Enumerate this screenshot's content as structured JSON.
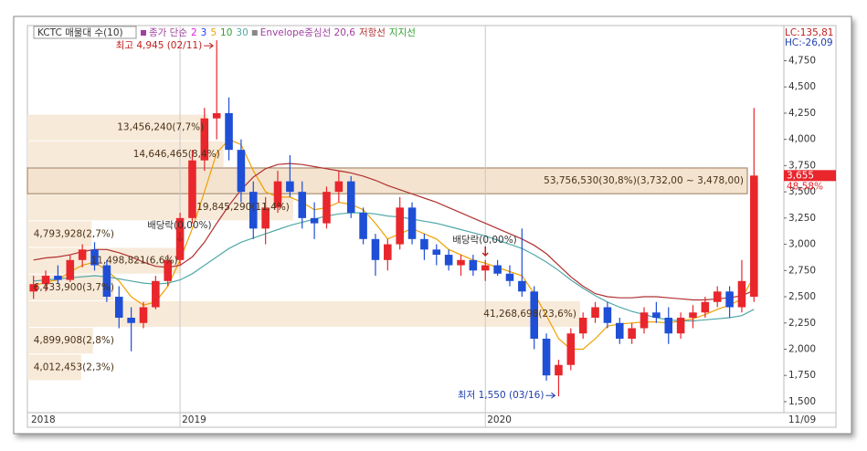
{
  "chart_data": {
    "type": "candlestick",
    "title": "KCTC 매물대 수(10)",
    "legend_prefix": "종가 단순",
    "categories": [
      "2018",
      null,
      null,
      null,
      null,
      null,
      null,
      null,
      null,
      null,
      null,
      null,
      "2019",
      null,
      null,
      null,
      null,
      null,
      null,
      null,
      null,
      null,
      null,
      null,
      null,
      null,
      null,
      null,
      null,
      null,
      null,
      null,
      null,
      null,
      null,
      null,
      null,
      "2020",
      null,
      null,
      null,
      null,
      null,
      null,
      null,
      null,
      null,
      null,
      null,
      null,
      null,
      null,
      null,
      null,
      null,
      null,
      null,
      null,
      null,
      null
    ],
    "open": [
      2550,
      2620,
      2700,
      2660,
      2850,
      2950,
      2800,
      2500,
      2300,
      2250,
      2400,
      2650,
      2850,
      3250,
      3800,
      4200,
      4250,
      3900,
      3500,
      3150,
      3350,
      3600,
      3500,
      3250,
      3200,
      3500,
      3600,
      3300,
      3050,
      2850,
      3000,
      3350,
      3050,
      2950,
      2900,
      2800,
      2850,
      2750,
      2800,
      2720,
      2650,
      2550,
      2100,
      1750,
      1850,
      2150,
      2300,
      2400,
      2250,
      2100,
      2200,
      2350,
      2300,
      2150,
      2300,
      2350,
      2450,
      2550,
      2400,
      2500
    ],
    "high": [
      2700,
      2750,
      2800,
      2900,
      3000,
      3020,
      2850,
      2600,
      2400,
      2450,
      2700,
      2900,
      3300,
      3900,
      4300,
      4945,
      4400,
      4000,
      3600,
      3450,
      3700,
      3850,
      3600,
      3400,
      3550,
      3700,
      3650,
      3350,
      3100,
      3050,
      3450,
      3400,
      3100,
      3000,
      2950,
      2900,
      2900,
      2850,
      2850,
      2800,
      3150,
      2600,
      2150,
      1900,
      2200,
      2350,
      2450,
      2450,
      2300,
      2250,
      2400,
      2450,
      2400,
      2350,
      2420,
      2500,
      2600,
      2600,
      2850,
      4300
    ],
    "low": [
      2480,
      2550,
      2620,
      2640,
      2780,
      2750,
      2450,
      2200,
      1980,
      2200,
      2380,
      2600,
      2800,
      3200,
      3700,
      4000,
      3800,
      3400,
      3050,
      3000,
      3300,
      3450,
      3150,
      3050,
      3150,
      3400,
      3250,
      3000,
      2700,
      2750,
      2950,
      3000,
      2850,
      2800,
      2750,
      2700,
      2700,
      2650,
      2700,
      2600,
      2500,
      2000,
      1700,
      1550,
      1800,
      2100,
      2250,
      2200,
      2050,
      2050,
      2150,
      2250,
      2050,
      2100,
      2200,
      2300,
      2400,
      2300,
      2350,
      2450
    ],
    "close": [
      2620,
      2700,
      2660,
      2850,
      2950,
      2800,
      2500,
      2300,
      2250,
      2400,
      2650,
      2850,
      3250,
      3800,
      4200,
      4250,
      3900,
      3500,
      3150,
      3350,
      3600,
      3500,
      3250,
      3200,
      3500,
      3600,
      3300,
      3050,
      2850,
      3000,
      3350,
      3050,
      2950,
      2900,
      2800,
      2850,
      2750,
      2800,
      2720,
      2650,
      2550,
      2100,
      1750,
      1850,
      2150,
      2300,
      2400,
      2250,
      2100,
      2200,
      2350,
      2300,
      2150,
      2300,
      2350,
      2450,
      2550,
      2400,
      2650,
      3655
    ],
    "up_color": "#e8262c",
    "down_color": "#1f4fd6",
    "series": [
      {
        "name": "2",
        "color": "#e020e0"
      },
      {
        "name": "3",
        "color": "#2040ff"
      },
      {
        "name": "5",
        "color": "#f0a000",
        "values": [
          2600,
          2640,
          2660,
          2740,
          2800,
          2830,
          2750,
          2650,
          2500,
          2420,
          2450,
          2600,
          2850,
          3150,
          3500,
          3870,
          4000,
          3950,
          3700,
          3500,
          3450,
          3450,
          3400,
          3330,
          3350,
          3400,
          3380,
          3330,
          3200,
          3050,
          3100,
          3150,
          3100,
          3050,
          2950,
          2900,
          2850,
          2820,
          2780,
          2740,
          2700,
          2530,
          2320,
          2100,
          2000,
          2000,
          2100,
          2220,
          2240,
          2250,
          2260,
          2260,
          2250,
          2270,
          2290,
          2330,
          2380,
          2420,
          2480,
          2700
        ]
      },
      {
        "name": "10",
        "color": "#30a030"
      },
      {
        "name": "30",
        "color": "#50a8a8",
        "values": [
          2650,
          2660,
          2670,
          2680,
          2690,
          2700,
          2690,
          2670,
          2650,
          2630,
          2620,
          2630,
          2660,
          2720,
          2800,
          2880,
          2960,
          3020,
          3060,
          3100,
          3140,
          3180,
          3210,
          3240,
          3270,
          3290,
          3300,
          3300,
          3290,
          3270,
          3260,
          3240,
          3220,
          3200,
          3170,
          3140,
          3110,
          3080,
          3040,
          3000,
          2960,
          2900,
          2830,
          2750,
          2660,
          2580,
          2510,
          2450,
          2400,
          2360,
          2330,
          2300,
          2280,
          2270,
          2270,
          2280,
          2290,
          2300,
          2320,
          2380
        ]
      },
      {
        "name": "Envelope중심선 20,6",
        "color": "#a040a0"
      },
      {
        "name": "저항선",
        "color": "#b03030",
        "values": [
          2850,
          2870,
          2880,
          2900,
          2930,
          2950,
          2950,
          2920,
          2880,
          2830,
          2790,
          2780,
          2800,
          2880,
          3020,
          3200,
          3370,
          3520,
          3640,
          3720,
          3760,
          3770,
          3760,
          3740,
          3720,
          3700,
          3680,
          3650,
          3610,
          3560,
          3520,
          3480,
          3440,
          3400,
          3350,
          3300,
          3250,
          3200,
          3150,
          3100,
          3050,
          2990,
          2910,
          2800,
          2690,
          2600,
          2530,
          2500,
          2490,
          2490,
          2500,
          2500,
          2490,
          2480,
          2470,
          2470,
          2480,
          2490,
          2510,
          2560
        ]
      },
      {
        "name": "지지선",
        "color": "#30a030"
      }
    ],
    "volume_profile": [
      {
        "label": "13,456,240(7,7%)",
        "volume": 13456240,
        "low": 3986,
        "high": 4240
      },
      {
        "label": "14,646,465(8,4%)",
        "volume": 14646465,
        "low": 3732,
        "high": 3986
      },
      {
        "label": "53,756,530(30,8%)(3,732,00 ~ 3,478,00)",
        "volume": 53756530,
        "low": 3478,
        "high": 3732
      },
      {
        "label": "19,845,290(11,4%)",
        "volume": 19845290,
        "low": 3224,
        "high": 3478
      },
      {
        "label": "4,793,928(2,7%)",
        "volume": 4793928,
        "low": 2970,
        "high": 3224
      },
      {
        "label": "11,498,821(6,6%)",
        "volume": 11498821,
        "low": 2716,
        "high": 2970
      },
      {
        "label": "6,433,900(3,7%)",
        "volume": 6433900,
        "low": 2462,
        "high": 2716
      },
      {
        "label": "41,268,698(23,6%)",
        "volume": 41268698,
        "low": 2208,
        "high": 2462
      },
      {
        "label": "4,899,908(2,8%)",
        "volume": 4899908,
        "low": 1954,
        "high": 2208
      },
      {
        "label": "4,012,453(2,3%)",
        "volume": 4012453,
        "low": 1700,
        "high": 1954
      }
    ],
    "vlim": [
      0,
      53756530
    ],
    "high_note": "최고 4,945 (02/11)",
    "low_note": "최저 1,550 (03/16)",
    "dividend_notes": [
      "배당락(0,00%)",
      "배당락(0,00%)"
    ],
    "last_price_label": "3,655",
    "last_change": "48,58%",
    "lc": "LC:135,81",
    "hc": "HC:-26,09",
    "last_date": "11/09",
    "ylim": [
      1395,
      5085
    ],
    "yticks": [
      {
        "value": 1500,
        "label": "1,500"
      },
      {
        "value": 1750,
        "label": "1,750"
      },
      {
        "value": 2000,
        "label": "2,000"
      },
      {
        "value": 2250,
        "label": "2,250"
      },
      {
        "value": 2500,
        "label": "2,500"
      },
      {
        "value": 2750,
        "label": "2,750"
      },
      {
        "value": 3000,
        "label": "3,000"
      },
      {
        "value": 3250,
        "label": "3,250"
      },
      {
        "value": 3500,
        "label": "3,500"
      },
      {
        "value": 3750,
        "label": "3,750"
      },
      {
        "value": 4000,
        "label": "4,000"
      },
      {
        "value": 4250,
        "label": "4,250"
      },
      {
        "value": 4500,
        "label": "4,500"
      },
      {
        "value": 4750,
        "label": "4,750"
      }
    ]
  }
}
